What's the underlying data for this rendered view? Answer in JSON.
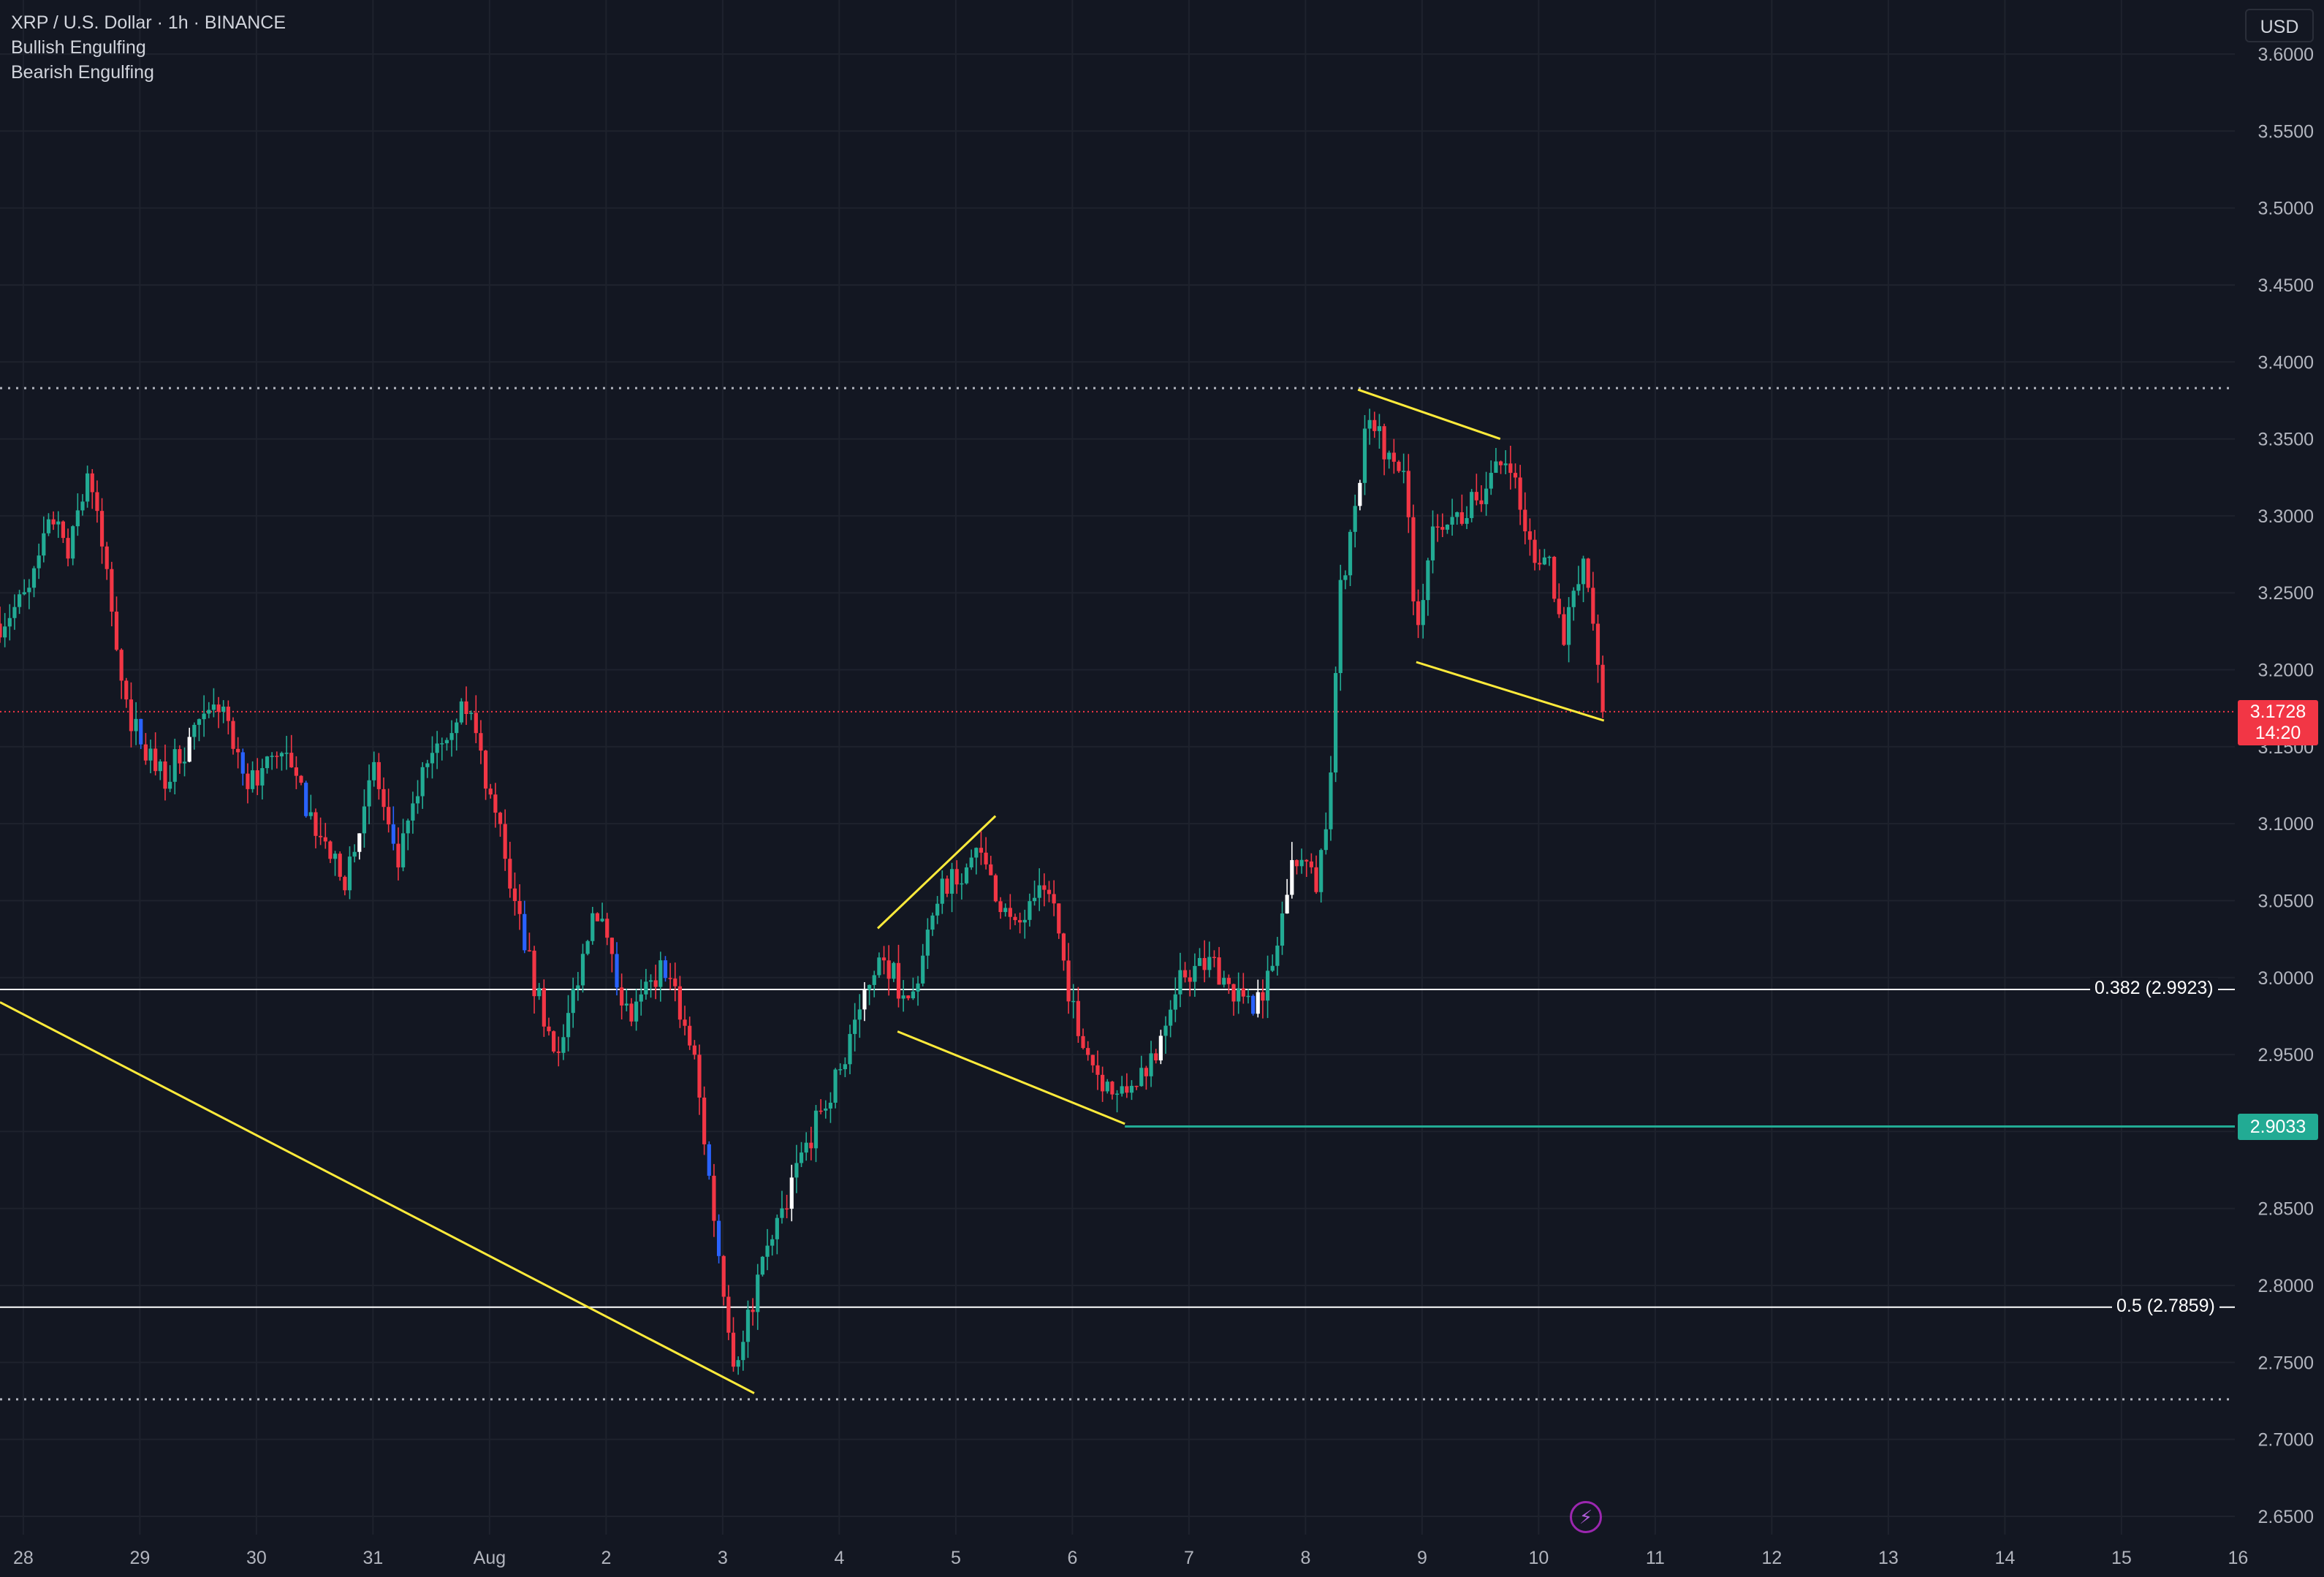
{
  "header": {
    "symbol_line": "XRP / U.S. Dollar · 1h · BINANCE",
    "indicators": [
      "Bullish Engulfing",
      "Bearish Engulfing"
    ]
  },
  "currency_button": "USD",
  "last_price": {
    "value": "3.1728",
    "countdown": "14:20",
    "color": "#f23645"
  },
  "hline_price": {
    "value": "2.9033",
    "color": "#22ab94"
  },
  "fib_levels": [
    {
      "label": "0.382 (2.9923)",
      "value": 2.9923
    },
    {
      "label": "0.5 (2.7859)",
      "value": 2.7859
    }
  ],
  "chart_data": {
    "type": "candlestick",
    "yticks": [
      "3.6000",
      "3.5500",
      "3.5000",
      "3.4500",
      "3.4000",
      "3.3500",
      "3.3000",
      "3.2500",
      "3.2000",
      "3.1500",
      "3.1000",
      "3.0500",
      "3.0000",
      "2.9500",
      "2.9000",
      "2.8500",
      "2.8000",
      "2.7500",
      "2.7000",
      "2.6500"
    ],
    "ylim": [
      2.64,
      3.605
    ],
    "xticks": [
      "28",
      "29",
      "30",
      "31",
      "Aug",
      "2",
      "3",
      "4",
      "5",
      "6",
      "7",
      "8",
      "9",
      "10",
      "11",
      "12",
      "13",
      "14",
      "15",
      "16"
    ],
    "xlim_day": [
      27.8,
      47.1
    ],
    "colors": {
      "up": "#22ab94",
      "down": "#f23645",
      "bull_engulf": "#ffffff",
      "bear_engulf": "#2962ff",
      "trendline": "#ffeb3b",
      "grid": "#1e222d"
    },
    "anchors": [
      {
        "day": 27.8,
        "price": 3.23
      },
      {
        "day": 28.05,
        "price": 3.25
      },
      {
        "day": 28.25,
        "price": 3.3
      },
      {
        "day": 28.38,
        "price": 3.27
      },
      {
        "day": 28.55,
        "price": 3.33
      },
      {
        "day": 28.7,
        "price": 3.27
      },
      {
        "day": 28.9,
        "price": 3.17
      },
      {
        "day": 29.2,
        "price": 3.13
      },
      {
        "day": 29.5,
        "price": 3.16
      },
      {
        "day": 29.7,
        "price": 3.18
      },
      {
        "day": 29.9,
        "price": 3.12
      },
      {
        "day": 30.2,
        "price": 3.15
      },
      {
        "day": 30.5,
        "price": 3.1
      },
      {
        "day": 30.75,
        "price": 3.06
      },
      {
        "day": 31.0,
        "price": 3.14
      },
      {
        "day": 31.2,
        "price": 3.07
      },
      {
        "day": 31.5,
        "price": 3.15
      },
      {
        "day": 31.8,
        "price": 3.18
      },
      {
        "day": 32.1,
        "price": 3.09
      },
      {
        "day": 32.4,
        "price": 2.99
      },
      {
        "day": 32.6,
        "price": 2.95
      },
      {
        "day": 32.9,
        "price": 3.05
      },
      {
        "day": 33.2,
        "price": 2.97
      },
      {
        "day": 33.5,
        "price": 3.01
      },
      {
        "day": 33.75,
        "price": 2.95
      },
      {
        "day": 33.95,
        "price": 2.83
      },
      {
        "day": 34.1,
        "price": 2.75
      },
      {
        "day": 34.3,
        "price": 2.8
      },
      {
        "day": 34.6,
        "price": 2.87
      },
      {
        "day": 35.0,
        "price": 2.94
      },
      {
        "day": 35.35,
        "price": 3.02
      },
      {
        "day": 35.6,
        "price": 2.98
      },
      {
        "day": 35.9,
        "price": 3.06
      },
      {
        "day": 36.2,
        "price": 3.08
      },
      {
        "day": 36.5,
        "price": 3.03
      },
      {
        "day": 36.8,
        "price": 3.06
      },
      {
        "day": 37.0,
        "price": 2.98
      },
      {
        "day": 37.2,
        "price": 2.94
      },
      {
        "day": 37.4,
        "price": 2.92
      },
      {
        "day": 37.7,
        "price": 2.95
      },
      {
        "day": 37.9,
        "price": 3.0
      },
      {
        "day": 38.2,
        "price": 3.01
      },
      {
        "day": 38.5,
        "price": 2.98
      },
      {
        "day": 38.7,
        "price": 3.0
      },
      {
        "day": 38.9,
        "price": 3.08
      },
      {
        "day": 39.1,
        "price": 3.06
      },
      {
        "day": 39.2,
        "price": 3.12
      },
      {
        "day": 39.3,
        "price": 3.25
      },
      {
        "day": 39.45,
        "price": 3.32
      },
      {
        "day": 39.55,
        "price": 3.37
      },
      {
        "day": 39.7,
        "price": 3.34
      },
      {
        "day": 39.85,
        "price": 3.33
      },
      {
        "day": 39.95,
        "price": 3.22
      },
      {
        "day": 40.1,
        "price": 3.3
      },
      {
        "day": 40.35,
        "price": 3.3
      },
      {
        "day": 40.55,
        "price": 3.32
      },
      {
        "day": 40.75,
        "price": 3.34
      },
      {
        "day": 40.9,
        "price": 3.28
      },
      {
        "day": 41.1,
        "price": 3.27
      },
      {
        "day": 41.2,
        "price": 3.22
      },
      {
        "day": 41.4,
        "price": 3.27
      },
      {
        "day": 41.55,
        "price": 3.17
      }
    ],
    "trendlines": [
      {
        "from": {
          "day": 27.8,
          "price": 2.984
        },
        "to": {
          "day": 34.27,
          "price": 2.73
        }
      },
      {
        "from": {
          "day": 35.33,
          "price": 3.032
        },
        "to": {
          "day": 36.34,
          "price": 3.105
        }
      },
      {
        "from": {
          "day": 35.5,
          "price": 2.965
        },
        "to": {
          "day": 37.45,
          "price": 2.905
        }
      },
      {
        "from": {
          "day": 39.45,
          "price": 3.382
        },
        "to": {
          "day": 40.67,
          "price": 3.35
        }
      },
      {
        "from": {
          "day": 39.95,
          "price": 3.205
        },
        "to": {
          "day": 41.56,
          "price": 3.167
        }
      }
    ],
    "dotted_levels": [
      3.383,
      2.726
    ],
    "hline": {
      "start_day": 37.45,
      "price": 2.9033
    },
    "last_price_line": 3.1728,
    "last_price_color": "#f23645",
    "hline_color": "#22ab94"
  }
}
